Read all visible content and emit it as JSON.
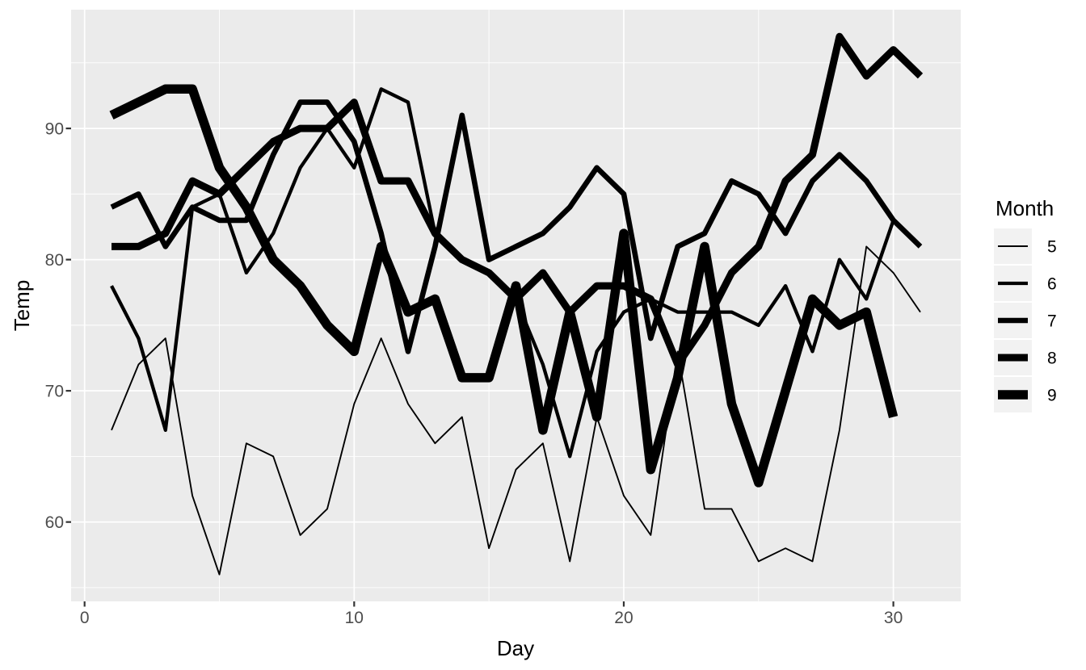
{
  "figure": {
    "background": "#FFFFFF",
    "panel_background": "#EBEBEB",
    "grid_color": "#FFFFFF",
    "axis_tick_color": "#333333",
    "tick_label_color": "#4D4D4D",
    "title_color": "#000000",
    "line_color": "#000000",
    "legend_key_background": "#F2F2F2"
  },
  "chart_data": {
    "type": "line",
    "title": "",
    "xlabel": "Day",
    "ylabel": "Temp",
    "legend_title": "Month",
    "legend_position": "right",
    "grid": "on",
    "xlim": [
      -0.5,
      32.5
    ],
    "ylim": [
      53.95,
      99.05
    ],
    "x_ticks": [
      0,
      10,
      20,
      30
    ],
    "y_ticks": [
      60,
      70,
      80,
      90
    ],
    "x_minor_ticks": [
      5,
      15,
      25
    ],
    "y_minor_ticks": [
      55,
      65,
      75,
      85,
      95
    ],
    "size_scale_note": "line width encodes Month (5 thinnest to 9 thickest)",
    "series": [
      {
        "name": "5",
        "month": 5,
        "stroke_width": 1.9,
        "days_start": 1,
        "values": [
          67,
          72,
          74,
          62,
          56,
          66,
          65,
          59,
          61,
          69,
          74,
          69,
          66,
          68,
          58,
          64,
          66,
          57,
          68,
          62,
          59,
          73,
          61,
          61,
          57,
          58,
          57,
          67,
          81,
          79,
          76
        ]
      },
      {
        "name": "6",
        "month": 6,
        "stroke_width": 4.3,
        "days_start": 1,
        "values": [
          78,
          74,
          67,
          84,
          85,
          79,
          82,
          87,
          90,
          87,
          93,
          92,
          82,
          80,
          79,
          77,
          72,
          65,
          73,
          76,
          77,
          76,
          76,
          76,
          75,
          78,
          73,
          80,
          77,
          83
        ]
      },
      {
        "name": "7",
        "month": 7,
        "stroke_width": 6.6,
        "days_start": 1,
        "values": [
          84,
          85,
          81,
          84,
          83,
          83,
          88,
          92,
          92,
          89,
          82,
          73,
          81,
          91,
          80,
          81,
          82,
          84,
          87,
          85,
          74,
          81,
          82,
          86,
          85,
          82,
          86,
          88,
          86,
          83,
          81
        ]
      },
      {
        "name": "8",
        "month": 8,
        "stroke_width": 9.0,
        "days_start": 1,
        "values": [
          81,
          81,
          82,
          86,
          85,
          87,
          89,
          90,
          90,
          92,
          86,
          86,
          82,
          80,
          79,
          77,
          79,
          76,
          78,
          78,
          77,
          72,
          75,
          79,
          81,
          86,
          88,
          97,
          94,
          96,
          94
        ]
      },
      {
        "name": "9",
        "month": 9,
        "stroke_width": 11.5,
        "days_start": 1,
        "values": [
          91,
          92,
          93,
          93,
          87,
          84,
          80,
          78,
          75,
          73,
          81,
          76,
          77,
          71,
          71,
          78,
          67,
          76,
          68,
          82,
          64,
          71,
          81,
          69,
          63,
          70,
          77,
          75,
          76,
          68
        ]
      }
    ]
  }
}
